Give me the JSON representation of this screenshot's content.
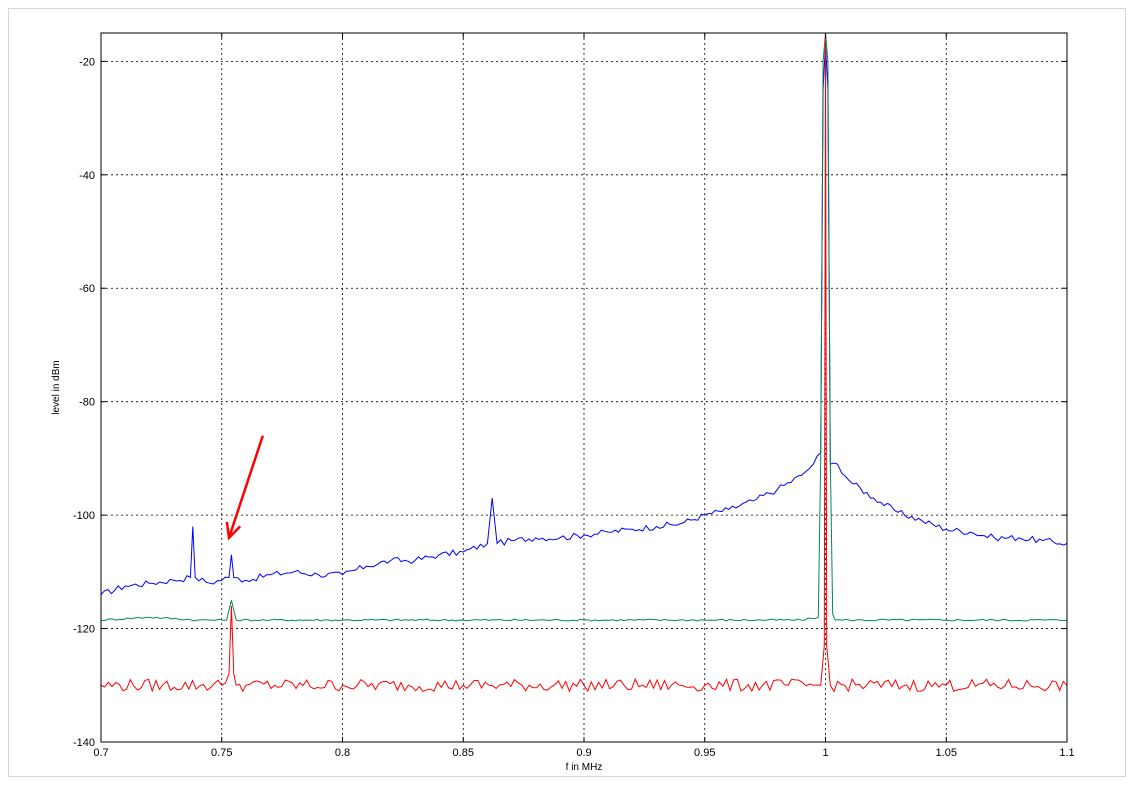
{
  "chart_data": {
    "type": "line",
    "xlabel": "f in MHz",
    "ylabel": "level in dBm",
    "xlim": [
      0.7,
      1.1
    ],
    "ylim": [
      -140,
      -15
    ],
    "xticks": [
      "0.7",
      "0.75",
      "0.8",
      "0.85",
      "0.9",
      "0.95",
      "1",
      "1.05",
      "1.1"
    ],
    "xtick_values": [
      0.7,
      0.75,
      0.8,
      0.85,
      0.9,
      0.95,
      1.0,
      1.05,
      1.1
    ],
    "yticks": [
      "-20",
      "-40",
      "-60",
      "-80",
      "-100",
      "-120",
      "-140"
    ],
    "ytick_values": [
      -20,
      -40,
      -60,
      -80,
      -100,
      -120,
      -140
    ],
    "grid": true,
    "series": [
      {
        "color": "#0000ff",
        "x": [
          0.7,
          0.71,
          0.72,
          0.73,
          0.737,
          0.738,
          0.739,
          0.745,
          0.753,
          0.754,
          0.755,
          0.76,
          0.77,
          0.78,
          0.79,
          0.8,
          0.81,
          0.82,
          0.83,
          0.84,
          0.85,
          0.86,
          0.862,
          0.864,
          0.87,
          0.88,
          0.89,
          0.9,
          0.91,
          0.92,
          0.93,
          0.94,
          0.95,
          0.96,
          0.97,
          0.98,
          0.99,
          0.995,
          0.998,
          0.999,
          1.0,
          1.001,
          1.002,
          1.005,
          1.01,
          1.02,
          1.03,
          1.04,
          1.05,
          1.06,
          1.07,
          1.08,
          1.09,
          1.1
        ],
        "y": [
          -114,
          -112.5,
          -112,
          -111.5,
          -111,
          -102,
          -111,
          -112,
          -111,
          -107,
          -111,
          -111.5,
          -110.5,
          -110,
          -110.5,
          -110.5,
          -109,
          -108,
          -108,
          -107,
          -106.5,
          -105,
          -97,
          -105,
          -104.5,
          -104,
          -104,
          -103.5,
          -103,
          -102.5,
          -102,
          -101.5,
          -100,
          -99,
          -97.5,
          -95.5,
          -93,
          -91,
          -89,
          -25,
          -17,
          -25,
          -91,
          -91,
          -94,
          -97,
          -99.5,
          -101,
          -102.5,
          -103,
          -104,
          -104,
          -104.5,
          -105
        ]
      },
      {
        "color": "#008a55",
        "x": [
          0.7,
          0.72,
          0.74,
          0.752,
          0.754,
          0.756,
          0.77,
          0.8,
          0.85,
          0.9,
          0.95,
          0.99,
          0.997,
          0.998,
          0.999,
          1.0,
          1.001,
          1.002,
          1.003,
          1.004,
          1.01,
          1.05,
          1.1
        ],
        "y": [
          -118.5,
          -118,
          -118.5,
          -118.5,
          -115,
          -118.5,
          -118.5,
          -118.5,
          -118.5,
          -118.5,
          -118.5,
          -118.5,
          -118,
          -90,
          -20,
          -15,
          -20,
          -90,
          -117.5,
          -118.5,
          -118.5,
          -118.5,
          -118.5
        ]
      },
      {
        "color": "#ff0000",
        "x": [
          0.7,
          0.75,
          0.753,
          0.754,
          0.755,
          0.756,
          0.76,
          0.8,
          0.85,
          0.9,
          0.95,
          0.998,
          0.9995,
          1.0,
          1.0005,
          1.002,
          1.05,
          1.1
        ],
        "y": [
          -130,
          -130,
          -128,
          -116,
          -128,
          -130,
          -130,
          -130,
          -130,
          -130,
          -130,
          -130,
          -123,
          -15,
          -123,
          -130,
          -130,
          -130
        ]
      }
    ],
    "annotations": [
      {
        "type": "arrow",
        "color": "#ff0000",
        "from": [
          0.767,
          -86
        ],
        "to": [
          0.753,
          -104
        ]
      }
    ]
  }
}
